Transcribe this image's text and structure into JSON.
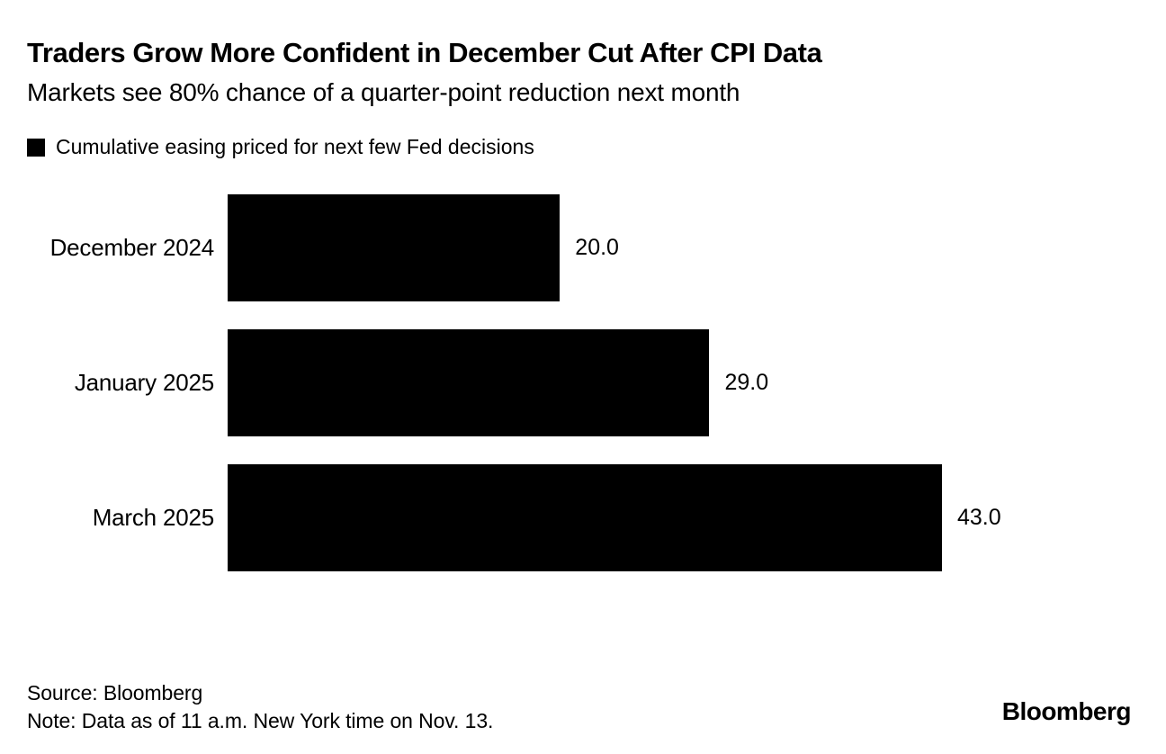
{
  "header": {
    "title": "Traders Grow More Confident in December Cut After CPI Data",
    "subtitle": "Markets see 80% chance of a quarter-point reduction next month"
  },
  "legend": {
    "label": "Cumulative easing priced for next few Fed decisions",
    "swatch_color": "#000000"
  },
  "chart_data": {
    "type": "bar",
    "orientation": "horizontal",
    "title": "Cumulative easing priced for next few Fed decisions",
    "categories": [
      "December 2024",
      "January 2025",
      "March 2025"
    ],
    "values": [
      20.0,
      29.0,
      43.0
    ],
    "value_labels": [
      "20.0",
      "29.0",
      "43.0"
    ],
    "bar_color": "#000000",
    "xlim": [
      0,
      43
    ],
    "grid": false,
    "legend_position": "top",
    "value_labels_position": "right-of-bar"
  },
  "footer": {
    "source": "Source: Bloomberg",
    "note": "Note: Data as of 11 a.m. New York time on Nov. 13.",
    "logo": "Bloomberg"
  }
}
